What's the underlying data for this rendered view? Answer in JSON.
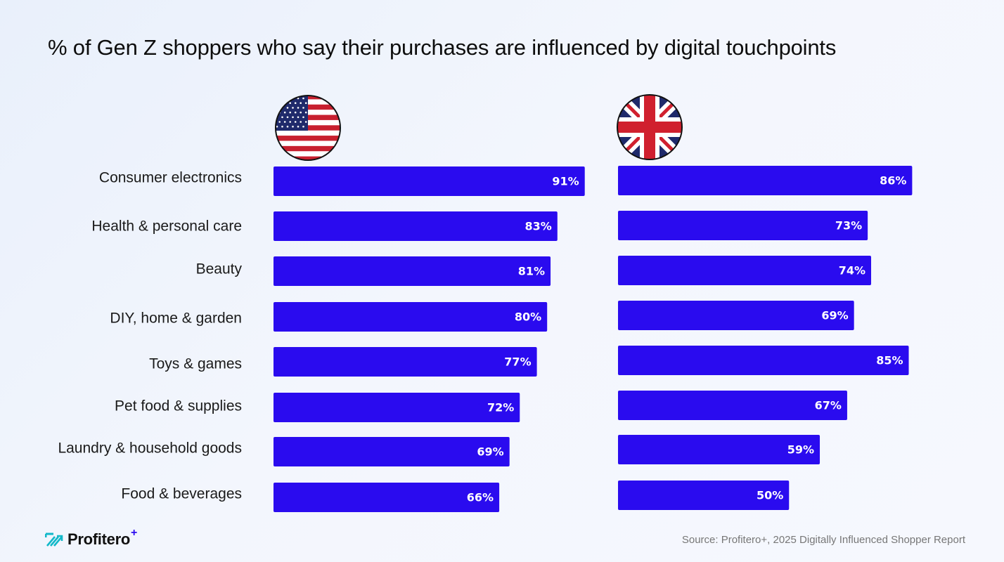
{
  "title": "% of Gen Z shoppers who say their purchases are influenced by digital touchpoints",
  "logo": {
    "name": "Profitero",
    "plus": "+"
  },
  "source": "Source: Profitero+, 2025 Digitally Influenced Shopper Report",
  "colors": {
    "bar": "#2a0bef",
    "bar_text": "#ffffff"
  },
  "chart_data": {
    "type": "bar",
    "orientation": "horizontal",
    "title": "% of Gen Z shoppers who say their purchases are influenced by digital touchpoints",
    "categories": [
      "Consumer electronics",
      "Health & personal care",
      "Beauty",
      "DIY, home & garden",
      "Toys & games",
      "Pet food & supplies",
      "Laundry & household goods",
      "Food & beverages"
    ],
    "panels": [
      {
        "icon": "us-flag-icon",
        "values": [
          91,
          83,
          81,
          80,
          77,
          72,
          69,
          66
        ],
        "labels": [
          "91%",
          "83%",
          "81%",
          "80%",
          "77%",
          "72%",
          "69%",
          "66%"
        ]
      },
      {
        "icon": "uk-flag-icon",
        "values": [
          86,
          73,
          74,
          69,
          85,
          67,
          59,
          50
        ],
        "labels": [
          "86%",
          "73%",
          "74%",
          "69%",
          "85%",
          "67%",
          "59%",
          "50%"
        ]
      }
    ],
    "xlim": [
      0,
      100
    ],
    "grid": false
  }
}
